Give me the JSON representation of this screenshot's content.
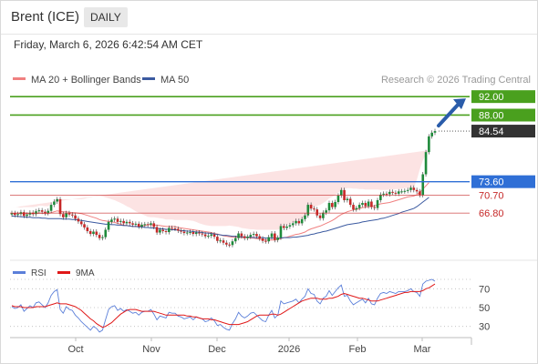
{
  "header": {
    "instrument": "Brent (ICE)",
    "period": "DAILY"
  },
  "timestamp": "Friday, March 6, 2026 6:42:54 AM CET",
  "credit": "Research © 2026 Trading Central",
  "colors": {
    "ma20": "#f08080",
    "ma50": "#3b5aa0",
    "bull": "#1f8a3b",
    "bear": "#c62828",
    "target": "#4aa01e",
    "pivot": "#2f6fd6",
    "support": "#c62828",
    "last": "#333333",
    "rsi": "#5b7fd9",
    "rsi_ma": "#e01818",
    "arrow": "#2a5caa"
  },
  "chart_data": [
    {
      "type": "candlestick",
      "title": "",
      "legend": [
        {
          "name": "MA 20 + Bollinger Bands",
          "color": "#f08080"
        },
        {
          "name": "MA 50",
          "color": "#3b5aa0"
        }
      ],
      "legend_position": "top-left",
      "x_ticks": [
        "Oct",
        "Nov",
        "Dec",
        "2026",
        "Feb",
        "Mar"
      ],
      "ylim": [
        57,
        94
      ],
      "grid": false,
      "levels": [
        {
          "label": "92.00",
          "value": 92.0,
          "kind": "target"
        },
        {
          "label": "88.00",
          "value": 88.0,
          "kind": "target"
        },
        {
          "label": "84.54",
          "value": 84.54,
          "kind": "last"
        },
        {
          "label": "73.60",
          "value": 73.6,
          "kind": "pivot"
        },
        {
          "label": "70.70",
          "value": 70.7,
          "kind": "support"
        },
        {
          "label": "66.80",
          "value": 66.8,
          "kind": "support"
        }
      ],
      "series": {
        "close": [
          66.8,
          66.4,
          66.6,
          67.0,
          66.2,
          66.5,
          66.9,
          66.6,
          67.2,
          67.4,
          67.1,
          66.8,
          67.3,
          68.6,
          69.3,
          69.8,
          66.6,
          65.9,
          66.8,
          66.5,
          66.3,
          65.6,
          65.0,
          64.4,
          63.7,
          62.9,
          62.3,
          62.8,
          62.1,
          61.4,
          61.6,
          63.2,
          64.9,
          65.4,
          65.6,
          64.9,
          65.1,
          64.6,
          64.9,
          64.6,
          64.3,
          64.5,
          63.9,
          64.3,
          64.4,
          64.3,
          64.6,
          63.8,
          62.6,
          63.2,
          62.9,
          62.7,
          63.6,
          63.5,
          63.4,
          63.0,
          62.8,
          62.5,
          62.6,
          62.7,
          62.3,
          62.6,
          62.4,
          62.2,
          61.8,
          61.9,
          62.2,
          61.7,
          60.8,
          60.9,
          60.4,
          60.0,
          59.9,
          60.7,
          61.4,
          62.4,
          61.8,
          61.4,
          61.7,
          62.1,
          62.3,
          61.8,
          61.3,
          60.8,
          60.7,
          61.6,
          62.4,
          61.0,
          61.5,
          64.0,
          63.6,
          63.9,
          64.2,
          64.6,
          65.1,
          64.6,
          65.5,
          66.3,
          68.6,
          67.8,
          67.6,
          66.3,
          65.7,
          66.9,
          67.4,
          69.0,
          68.1,
          69.2,
          70.6,
          71.8,
          69.6,
          69.9,
          68.6,
          67.6,
          67.9,
          68.6,
          69.0,
          68.3,
          69.3,
          68.1,
          67.9,
          69.6,
          70.8,
          71.0,
          70.9,
          71.4,
          71.2,
          71.0,
          71.5,
          71.5,
          71.6,
          71.8,
          72.3,
          71.8,
          71.5,
          70.7,
          75.2,
          80.0,
          83.4,
          84.2,
          84.54
        ],
        "ma20": [
          66.7,
          66.8,
          66.8,
          66.7,
          66.8,
          66.7,
          66.7,
          66.7,
          66.7,
          66.8,
          66.8,
          66.7,
          66.7,
          66.9,
          67.1,
          67.3,
          67.2,
          67.1,
          67.1,
          67.0,
          66.9,
          66.9,
          66.8,
          66.7,
          66.5,
          66.3,
          66.1,
          65.9,
          65.7,
          65.4,
          65.2,
          65.1,
          65.0,
          64.9,
          64.8,
          64.6,
          64.4,
          64.2,
          64.1,
          64.0,
          63.9,
          63.9,
          63.9,
          64.0,
          64.1,
          64.3,
          64.3,
          64.2,
          64.2,
          64.1,
          64.0,
          63.9,
          63.9,
          63.9,
          63.9,
          63.7,
          63.6,
          63.5,
          63.4,
          63.3,
          63.2,
          63.1,
          63.0,
          62.9,
          62.8,
          62.7,
          62.6,
          62.4,
          62.3,
          62.1,
          61.9,
          61.8,
          61.7,
          61.6,
          61.6,
          61.6,
          61.5,
          61.5,
          61.5,
          61.4,
          61.4,
          61.3,
          61.2,
          61.1,
          61.0,
          61.0,
          61.0,
          61.0,
          61.1,
          61.3,
          61.5,
          61.6,
          61.8,
          62.0,
          62.2,
          62.3,
          62.5,
          62.7,
          63.1,
          63.4,
          63.6,
          63.8,
          64.0,
          64.3,
          64.6,
          64.9,
          65.2,
          65.6,
          66.1,
          66.5,
          66.8,
          67.1,
          67.3,
          67.5,
          67.6,
          67.8,
          68.0,
          68.1,
          68.2,
          68.3,
          68.4,
          68.6,
          68.8,
          68.9,
          69.0,
          69.1,
          69.3,
          69.5,
          69.7,
          69.9,
          70.1,
          70.3,
          70.4,
          70.5,
          70.8,
          71.3,
          72.0,
          72.7,
          73.4
        ],
        "bb_upper": [
          68.0,
          68.1,
          68.1,
          68.0,
          68.1,
          68.1,
          68.1,
          68.1,
          68.2,
          68.4,
          68.4,
          68.3,
          68.3,
          68.9,
          69.5,
          70.0,
          69.9,
          69.8,
          69.8,
          69.8,
          69.8,
          69.8,
          69.8,
          69.8,
          69.9,
          70.1,
          70.2,
          70.4,
          70.4,
          70.5,
          70.4,
          70.2,
          70.0,
          69.8,
          69.6,
          69.3,
          69.0,
          68.7,
          68.3,
          68.0,
          67.6,
          67.2,
          66.9,
          66.6,
          66.3,
          66.0,
          65.9,
          65.9,
          65.8,
          65.7,
          65.6,
          65.4,
          65.4,
          65.4,
          65.3,
          65.3,
          65.3,
          65.3,
          65.3,
          65.2,
          65.1,
          64.9,
          64.6,
          64.4,
          64.2,
          64.1,
          64.0,
          64.0,
          64.0,
          64.0,
          64.0,
          64.0,
          64.1,
          64.0,
          63.9,
          63.8,
          63.6,
          63.5,
          63.4,
          63.3,
          63.3,
          63.2,
          63.2,
          63.2,
          63.2,
          63.2,
          63.2,
          63.2,
          63.2,
          63.5,
          63.9,
          64.2,
          64.5,
          64.8,
          65.1,
          65.3,
          65.6,
          66.1,
          67.0,
          67.6,
          68.1,
          68.4,
          68.6,
          69.0,
          69.4,
          70.0,
          70.3,
          70.7,
          71.2,
          71.8,
          72.0,
          72.2,
          72.2,
          72.1,
          72.1,
          72.0,
          72.0,
          71.9,
          71.9,
          71.9,
          71.9,
          71.9,
          71.8,
          71.8,
          71.8,
          71.9,
          71.9,
          72.0,
          72.0,
          72.1,
          72.2,
          72.3,
          72.2,
          72.3,
          74.0,
          76.3,
          78.2,
          79.5,
          80.4
        ],
        "bb_lower": [
          65.3,
          65.4,
          65.4,
          65.3,
          65.4,
          65.4,
          65.4,
          65.3,
          65.2,
          65.2,
          65.1,
          65.1,
          65.1,
          64.9,
          64.6,
          64.6,
          64.6,
          64.5,
          64.4,
          64.3,
          64.0,
          63.9,
          63.7,
          63.5,
          63.2,
          62.6,
          62.1,
          61.5,
          61.0,
          60.4,
          60.0,
          60.0,
          60.1,
          60.2,
          60.3,
          60.3,
          60.3,
          60.4,
          60.7,
          61.2,
          61.7,
          62.3,
          62.8,
          63.3,
          63.6,
          63.9,
          63.7,
          63.4,
          63.2,
          62.8,
          62.6,
          62.5,
          62.4,
          62.4,
          62.5,
          62.3,
          62.2,
          62.1,
          62.0,
          61.8,
          61.7,
          61.8,
          61.8,
          61.9,
          61.8,
          61.7,
          61.6,
          61.1,
          60.6,
          60.1,
          59.6,
          59.0,
          58.6,
          58.6,
          58.6,
          58.7,
          58.8,
          59.0,
          59.1,
          59.0,
          58.9,
          58.9,
          58.9,
          58.8,
          58.8,
          58.9,
          59.0,
          59.2,
          59.4,
          59.3,
          59.1,
          59.0,
          58.9,
          58.8,
          58.8,
          58.9,
          59.0,
          59.1,
          58.9,
          59.0,
          59.1,
          59.2,
          59.2,
          59.2,
          59.3,
          59.3,
          59.5,
          59.8,
          60.3,
          60.8,
          61.5,
          62.3,
          62.8,
          63.2,
          63.5,
          64.0,
          64.3,
          64.6,
          64.8,
          65.1,
          65.5,
          66.0,
          66.5,
          66.9,
          67.2,
          67.4,
          67.8,
          68.3,
          68.8,
          69.2,
          69.7,
          70.2,
          70.7,
          70.9,
          69.6,
          66.4,
          63.5,
          61.8,
          60.4
        ],
        "ma50": [
          66.2,
          66.1,
          66.1,
          66.0,
          66.0,
          65.9,
          65.9,
          65.8,
          65.8,
          65.8,
          65.7,
          65.7,
          65.6,
          65.6,
          65.6,
          65.6,
          65.6,
          65.5,
          65.5,
          65.5,
          65.4,
          65.4,
          65.3,
          65.2,
          65.1,
          65.0,
          64.9,
          64.8,
          64.7,
          64.6,
          64.5,
          64.4,
          64.4,
          64.3,
          64.3,
          64.2,
          64.2,
          64.1,
          64.1,
          64.0,
          63.9,
          63.9,
          63.8,
          63.8,
          63.7,
          63.7,
          63.6,
          63.6,
          63.5,
          63.4,
          63.4,
          63.3,
          63.3,
          63.2,
          63.2,
          63.1,
          63.0,
          63.0,
          62.9,
          62.9,
          62.8,
          62.7,
          62.7,
          62.6,
          62.5,
          62.5,
          62.4,
          62.3,
          62.2,
          62.1,
          62.0,
          62.0,
          61.9,
          61.8,
          61.8,
          61.7,
          61.7,
          61.6,
          61.6,
          61.6,
          61.5,
          61.5,
          61.5,
          61.5,
          61.4,
          61.4,
          61.4,
          61.4,
          61.4,
          61.4,
          61.5,
          61.5,
          61.5,
          61.6,
          61.6,
          61.7,
          61.8,
          61.9,
          62.0,
          62.2,
          62.3,
          62.5,
          62.6,
          62.8,
          62.9,
          63.1,
          63.3,
          63.5,
          63.7,
          63.9,
          64.1,
          64.3,
          64.4,
          64.5,
          64.6,
          64.7,
          64.9,
          65.0,
          65.1,
          65.2,
          65.3,
          65.4,
          65.6,
          65.7,
          65.9,
          66.1,
          66.3,
          66.5,
          66.7,
          67.0,
          67.2,
          67.4,
          67.6,
          67.8,
          68.2,
          68.7,
          69.2,
          69.7,
          70.2
        ]
      }
    },
    {
      "type": "line",
      "title": "",
      "legend": [
        {
          "name": "RSI",
          "color": "#5b7fd9"
        },
        {
          "name": "9MA",
          "color": "#e01818"
        }
      ],
      "legend_position": "top-left",
      "y_ticks": [
        "70",
        "50",
        "30"
      ],
      "ylim": [
        21,
        79
      ],
      "series": {
        "rsi": [
          51,
          49,
          50,
          53,
          46,
          49,
          52,
          50,
          55,
          56,
          53,
          50,
          55,
          63,
          67,
          69,
          48,
          44,
          51,
          48,
          47,
          42,
          39,
          35,
          32,
          29,
          26,
          30,
          28,
          24,
          26,
          37,
          48,
          51,
          52,
          47,
          49,
          46,
          48,
          46,
          44,
          45,
          42,
          45,
          46,
          46,
          48,
          43,
          37,
          41,
          40,
          39,
          45,
          44,
          44,
          41,
          40,
          38,
          39,
          40,
          37,
          40,
          39,
          38,
          35,
          36,
          39,
          36,
          31,
          32,
          29,
          27,
          26,
          33,
          38,
          45,
          41,
          39,
          41,
          44,
          45,
          42,
          39,
          36,
          35,
          42,
          47,
          39,
          42,
          57,
          54,
          55,
          56,
          57,
          59,
          55,
          59,
          62,
          70,
          65,
          64,
          57,
          54,
          60,
          62,
          68,
          63,
          67,
          71,
          74,
          62,
          63,
          57,
          53,
          55,
          57,
          59,
          55,
          60,
          54,
          53,
          60,
          65,
          66,
          65,
          67,
          66,
          65,
          67,
          67,
          67,
          68,
          70,
          67,
          66,
          62,
          75,
          78,
          79,
          80,
          78
        ],
        "rsi_ma": [
          52,
          51,
          51,
          51,
          50,
          50,
          50,
          50,
          51,
          51,
          51,
          51,
          52,
          53,
          54,
          55,
          54,
          54,
          54,
          53,
          52,
          51,
          49,
          47,
          44,
          41,
          38,
          36,
          33,
          31,
          29,
          30,
          32,
          34,
          37,
          40,
          43,
          45,
          47,
          48,
          48,
          48,
          47,
          46,
          46,
          46,
          46,
          46,
          45,
          44,
          43,
          42,
          42,
          42,
          42,
          42,
          42,
          42,
          41,
          41,
          40,
          40,
          39,
          38,
          38,
          38,
          37,
          37,
          36,
          35,
          34,
          33,
          32,
          32,
          32,
          32,
          33,
          34,
          35,
          37,
          39,
          41,
          42,
          42,
          42,
          42,
          43,
          43,
          42,
          43,
          45,
          47,
          49,
          51,
          53,
          55,
          57,
          58,
          59,
          60,
          60,
          60,
          59,
          59,
          59,
          60,
          60,
          61,
          62,
          64,
          65,
          64,
          63,
          62,
          61,
          60,
          60,
          59,
          58,
          57,
          57,
          57,
          58,
          59,
          60,
          61,
          62,
          63,
          64,
          65,
          66,
          66,
          67,
          67,
          67,
          67,
          68,
          70,
          71,
          73,
          75
        ]
      }
    }
  ]
}
